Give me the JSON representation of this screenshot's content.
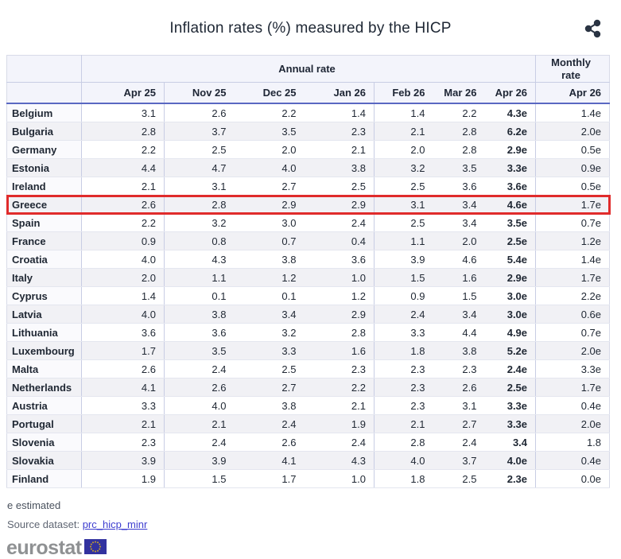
{
  "title": "Inflation rates (%) measured by the HICP",
  "icons": {
    "share": "share-nodes-icon",
    "eu_flag": "eu-flag-icon"
  },
  "colors": {
    "highlight_border": "#e02b2b",
    "link": "#3d3dcf",
    "logo_flag": "#32329f",
    "header_rule": "#5a68c2",
    "header_bg": "#f3f4fb",
    "row_alt_bg": "#f1f1f5",
    "text": "#1f2733"
  },
  "chart_data": {
    "type": "table",
    "title": "Inflation rates (%) measured by the HICP",
    "header": {
      "annual_group": "Annual rate",
      "monthly_group": "Monthly rate",
      "annual_columns": [
        "Apr 25",
        "Nov 25",
        "Dec 25",
        "Jan 26",
        "Feb 26",
        "Mar 26",
        "Apr 26"
      ],
      "monthly_column": "Apr 26"
    },
    "rows": [
      {
        "country": "Belgium",
        "annual": [
          "3.1",
          "2.6",
          "2.2",
          "1.4",
          "1.4",
          "2.2",
          "4.3e"
        ],
        "monthly": "1.4e"
      },
      {
        "country": "Bulgaria",
        "annual": [
          "2.8",
          "3.7",
          "3.5",
          "2.3",
          "2.1",
          "2.8",
          "6.2e"
        ],
        "monthly": "2.0e"
      },
      {
        "country": "Germany",
        "annual": [
          "2.2",
          "2.5",
          "2.0",
          "2.1",
          "2.0",
          "2.8",
          "2.9e"
        ],
        "monthly": "0.5e"
      },
      {
        "country": "Estonia",
        "annual": [
          "4.4",
          "4.7",
          "4.0",
          "3.8",
          "3.2",
          "3.5",
          "3.3e"
        ],
        "monthly": "0.9e"
      },
      {
        "country": "Ireland",
        "annual": [
          "2.1",
          "3.1",
          "2.7",
          "2.5",
          "2.5",
          "3.6",
          "3.6e"
        ],
        "monthly": "0.5e"
      },
      {
        "country": "Greece",
        "annual": [
          "2.6",
          "2.8",
          "2.9",
          "2.9",
          "3.1",
          "3.4",
          "4.6e"
        ],
        "monthly": "1.7e",
        "highlighted": true
      },
      {
        "country": "Spain",
        "annual": [
          "2.2",
          "3.2",
          "3.0",
          "2.4",
          "2.5",
          "3.4",
          "3.5e"
        ],
        "monthly": "0.7e"
      },
      {
        "country": "France",
        "annual": [
          "0.9",
          "0.8",
          "0.7",
          "0.4",
          "1.1",
          "2.0",
          "2.5e"
        ],
        "monthly": "1.2e"
      },
      {
        "country": "Croatia",
        "annual": [
          "4.0",
          "4.3",
          "3.8",
          "3.6",
          "3.9",
          "4.6",
          "5.4e"
        ],
        "monthly": "1.4e"
      },
      {
        "country": "Italy",
        "annual": [
          "2.0",
          "1.1",
          "1.2",
          "1.0",
          "1.5",
          "1.6",
          "2.9e"
        ],
        "monthly": "1.7e"
      },
      {
        "country": "Cyprus",
        "annual": [
          "1.4",
          "0.1",
          "0.1",
          "1.2",
          "0.9",
          "1.5",
          "3.0e"
        ],
        "monthly": "2.2e"
      },
      {
        "country": "Latvia",
        "annual": [
          "4.0",
          "3.8",
          "3.4",
          "2.9",
          "2.4",
          "3.4",
          "3.0e"
        ],
        "monthly": "0.6e"
      },
      {
        "country": "Lithuania",
        "annual": [
          "3.6",
          "3.6",
          "3.2",
          "2.8",
          "3.3",
          "4.4",
          "4.9e"
        ],
        "monthly": "0.7e"
      },
      {
        "country": "Luxembourg",
        "annual": [
          "1.7",
          "3.5",
          "3.3",
          "1.6",
          "1.8",
          "3.8",
          "5.2e"
        ],
        "monthly": "2.0e"
      },
      {
        "country": "Malta",
        "annual": [
          "2.6",
          "2.4",
          "2.5",
          "2.3",
          "2.3",
          "2.3",
          "2.4e"
        ],
        "monthly": "3.3e"
      },
      {
        "country": "Netherlands",
        "annual": [
          "4.1",
          "2.6",
          "2.7",
          "2.2",
          "2.3",
          "2.6",
          "2.5e"
        ],
        "monthly": "1.7e"
      },
      {
        "country": "Austria",
        "annual": [
          "3.3",
          "4.0",
          "3.8",
          "2.1",
          "2.3",
          "3.1",
          "3.3e"
        ],
        "monthly": "0.4e"
      },
      {
        "country": "Portugal",
        "annual": [
          "2.1",
          "2.1",
          "2.4",
          "1.9",
          "2.1",
          "2.7",
          "3.3e"
        ],
        "monthly": "2.0e"
      },
      {
        "country": "Slovenia",
        "annual": [
          "2.3",
          "2.4",
          "2.6",
          "2.4",
          "2.8",
          "2.4",
          "3.4"
        ],
        "monthly": "1.8"
      },
      {
        "country": "Slovakia",
        "annual": [
          "3.9",
          "3.9",
          "4.1",
          "4.3",
          "4.0",
          "3.7",
          "4.0e"
        ],
        "monthly": "0.4e"
      },
      {
        "country": "Finland",
        "annual": [
          "1.9",
          "1.5",
          "1.7",
          "1.0",
          "1.8",
          "2.5",
          "2.3e"
        ],
        "monthly": "0.0e"
      }
    ],
    "footnote": "e estimated",
    "source": {
      "label": "Source dataset:",
      "dataset": "prc_hicp_minr"
    },
    "logo_text": "eurostat"
  }
}
